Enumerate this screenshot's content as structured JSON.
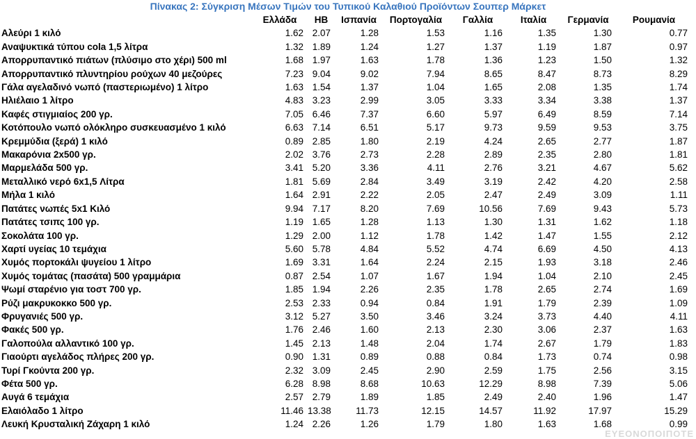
{
  "title": "Πίνακας 2: Σύγκριση Μέσων Τιμών του Τυπικού Καλαθιού Προϊόντων Σουπερ Μάρκετ",
  "colors": {
    "title_blue": "#3875BE",
    "body_text": "#000000",
    "watermark_gray": "#d9d9d9"
  },
  "watermark": "ΕΥΕΟΝΟΠΟΙΠΟΤΕ",
  "chart_data": {
    "type": "table",
    "title": "Πίνακας 2: Σύγκριση Μέσων Τιμών του Τυπικού Καλαθιού Προϊόντων Σουπερ Μάρκετ",
    "columns": [
      "Ελλάδα",
      "ΗΒ",
      "Ισπανία",
      "Πορτογαλία",
      "Γαλλία",
      "Ιταλία",
      "Γερμανία",
      "Ρουμανία"
    ],
    "rows": [
      {
        "product": "Αλεύρι 1 κιλό",
        "values": [
          "1.62",
          "2.07",
          "1.28",
          "1.53",
          "1.16",
          "1.35",
          "1.30",
          "0.77"
        ]
      },
      {
        "product": "Αναψυκτικά τύπου cola 1,5 λίτρα",
        "values": [
          "1.32",
          "1.89",
          "1.24",
          "1.27",
          "1.37",
          "1.19",
          "1.87",
          "0.97"
        ]
      },
      {
        "product": "Απορρυπαντικό πιάτων (πλύσιμο στο χέρι) 500 ml",
        "values": [
          "1.68",
          "1.97",
          "1.63",
          "1.78",
          "1.36",
          "1.23",
          "1.50",
          "1.32"
        ]
      },
      {
        "product": "Απορρυπαντικό πλυντηρίου ρούχων 40 μεζούρες",
        "values": [
          "7.23",
          "9.04",
          "9.02",
          "7.94",
          "8.65",
          "8.47",
          "8.73",
          "8.29"
        ]
      },
      {
        "product": "Γάλα αγελαδινό νωπό (παστεριωμένο) 1 λίτρο",
        "values": [
          "1.63",
          "1.54",
          "1.37",
          "1.04",
          "1.65",
          "2.08",
          "1.35",
          "1.74"
        ]
      },
      {
        "product": "Ηλιέλαιο 1 λίτρο",
        "values": [
          "4.83",
          "3.23",
          "2.99",
          "3.05",
          "3.33",
          "3.34",
          "3.38",
          "1.37"
        ]
      },
      {
        "product": "Καφές στιγμιαίος 200 γρ.",
        "values": [
          "7.05",
          "6.46",
          "7.37",
          "6.60",
          "5.97",
          "6.49",
          "8.59",
          "7.14"
        ]
      },
      {
        "product": "Κοτόπουλο νωπό ολόκληρο συσκευασμένο 1 κιλό",
        "values": [
          "6.63",
          "7.14",
          "6.51",
          "5.17",
          "9.73",
          "9.59",
          "9.53",
          "3.75"
        ]
      },
      {
        "product": "Κρεμμύδια (ξερά) 1 κιλό",
        "values": [
          "0.89",
          "2.85",
          "1.80",
          "2.19",
          "4.24",
          "2.65",
          "2.77",
          "1.87"
        ]
      },
      {
        "product": "Μακαρόνια 2x500 γρ.",
        "values": [
          "2.02",
          "3.76",
          "2.73",
          "2.28",
          "2.89",
          "2.35",
          "2.80",
          "1.81"
        ]
      },
      {
        "product": "Μαρμελάδα 500 γρ.",
        "values": [
          "3.41",
          "5.20",
          "3.36",
          "4.11",
          "2.76",
          "3.21",
          "4.67",
          "5.62"
        ]
      },
      {
        "product": "Μεταλλικό νερό 6x1,5 Λίτρα",
        "values": [
          "1.81",
          "5.69",
          "2.84",
          "3.49",
          "3.19",
          "2.42",
          "4.20",
          "2.58"
        ]
      },
      {
        "product": "Μήλα 1 κιλό",
        "values": [
          "1.64",
          "2.91",
          "2.22",
          "2.05",
          "2.47",
          "2.49",
          "3.09",
          "1.11"
        ]
      },
      {
        "product": "Πατάτες νωπές 5x1 Κιλό",
        "values": [
          "9.94",
          "7.17",
          "8.20",
          "7.69",
          "10.56",
          "7.69",
          "9.43",
          "5.73"
        ]
      },
      {
        "product": "Πατάτες τσιπς 100 γρ.",
        "values": [
          "1.19",
          "1.65",
          "1.28",
          "1.13",
          "1.30",
          "1.31",
          "1.62",
          "1.18"
        ]
      },
      {
        "product": "Σοκολάτα 100 γρ.",
        "values": [
          "1.29",
          "2.00",
          "1.12",
          "1.78",
          "1.42",
          "1.47",
          "1.55",
          "2.12"
        ]
      },
      {
        "product": "Χαρτί υγείας 10 τεμάχια",
        "values": [
          "5.60",
          "5.78",
          "4.84",
          "5.52",
          "4.74",
          "6.69",
          "4.50",
          "4.13"
        ]
      },
      {
        "product": "Χυμός πορτοκάλι ψυγείου 1 λίτρο",
        "values": [
          "1.69",
          "3.31",
          "1.64",
          "2.24",
          "2.15",
          "1.93",
          "3.18",
          "2.46"
        ]
      },
      {
        "product": "Χυμός τομάτας (πασάτα) 500 γραμμάρια",
        "values": [
          "0.87",
          "2.54",
          "1.07",
          "1.67",
          "1.94",
          "1.04",
          "2.10",
          "2.45"
        ]
      },
      {
        "product": "Ψωμί σταρένιο για τοστ 700 γρ.",
        "values": [
          "1.85",
          "1.94",
          "2.26",
          "2.35",
          "1.78",
          "2.65",
          "2.74",
          "1.69"
        ]
      },
      {
        "product": "Ρύζι μακρυκοκκο 500 γρ.",
        "values": [
          "2.53",
          "2.33",
          "0.94",
          "0.84",
          "1.91",
          "1.79",
          "2.39",
          "1.09"
        ]
      },
      {
        "product": "Φρυγανιές 500 γρ.",
        "values": [
          "3.12",
          "5.27",
          "3.50",
          "3.46",
          "3.24",
          "3.73",
          "4.40",
          "4.11"
        ]
      },
      {
        "product": "Φακές 500 γρ.",
        "values": [
          "1.76",
          "2.46",
          "1.60",
          "2.13",
          "2.30",
          "3.06",
          "2.37",
          "1.63"
        ]
      },
      {
        "product": "Γαλοπούλα αλλαντικό 100 γρ.",
        "values": [
          "1.45",
          "2.13",
          "1.48",
          "2.04",
          "1.74",
          "2.67",
          "1.79",
          "1.83"
        ]
      },
      {
        "product": "Γιαούρτι αγελάδος πλήρες 200 γρ.",
        "values": [
          "0.90",
          "1.31",
          "0.89",
          "0.88",
          "0.84",
          "1.73",
          "0.74",
          "0.98"
        ]
      },
      {
        "product": "Τυρί Γκούντα 200 γρ.",
        "values": [
          "2.32",
          "3.09",
          "2.45",
          "2.90",
          "2.59",
          "1.75",
          "2.56",
          "3.15"
        ]
      },
      {
        "product": "Φέτα 500 γρ.",
        "values": [
          "6.28",
          "8.98",
          "8.68",
          "10.63",
          "12.29",
          "8.98",
          "7.39",
          "5.06"
        ]
      },
      {
        "product": "Αυγά 6 τεμάχια",
        "values": [
          "2.57",
          "2.79",
          "1.89",
          "1.85",
          "2.49",
          "2.40",
          "1.96",
          "1.47"
        ]
      },
      {
        "product": "Ελαιόλαδο 1 λίτρο",
        "values": [
          "11.46",
          "13.38",
          "11.73",
          "12.15",
          "14.57",
          "11.92",
          "17.97",
          "15.29"
        ]
      },
      {
        "product": "Λευκή Κρυσταλική Ζάχαρη 1 κιλό",
        "values": [
          "1.24",
          "2.26",
          "1.26",
          "1.79",
          "1.80",
          "1.63",
          "1.68",
          "0.99"
        ]
      }
    ]
  }
}
